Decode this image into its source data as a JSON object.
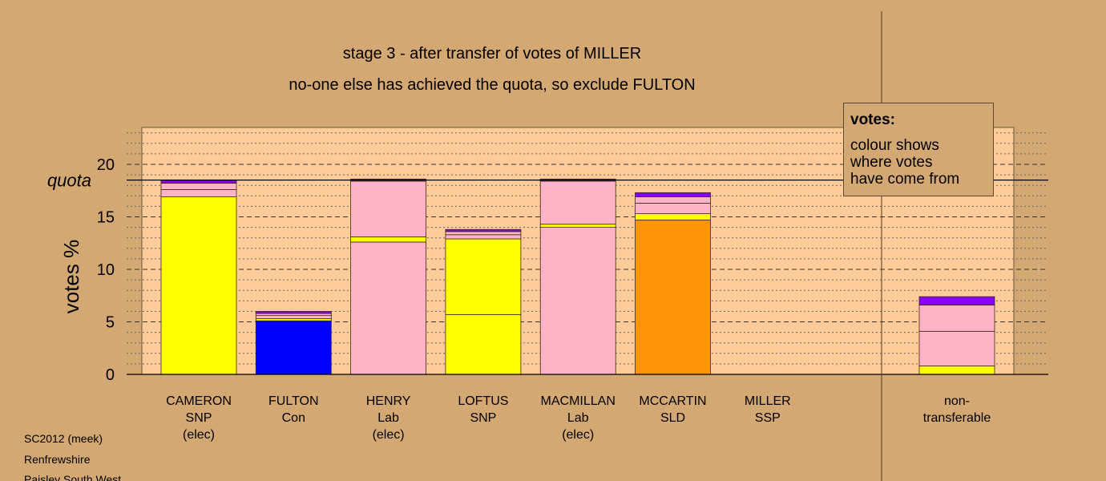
{
  "chart_data": {
    "type": "bar",
    "stacked": true,
    "title": "stage 3 - after transfer of votes of MILLER",
    "subtitle": "no-one else has achieved the quota, so exclude FULTON",
    "ylabel": "votes %",
    "xlabel": "",
    "ylim": [
      0,
      23.5
    ],
    "yticks": [
      0,
      5,
      10,
      15,
      20
    ],
    "quota": 18.5,
    "quota_label": "quota",
    "grid": "dashed at major ticks, dotted at minor",
    "categories": [
      {
        "name": "CAMERON",
        "party": "SNP",
        "status": "(elec)"
      },
      {
        "name": "FULTON",
        "party": "Con",
        "status": ""
      },
      {
        "name": "HENRY",
        "party": "Lab",
        "status": "(elec)"
      },
      {
        "name": "LOFTUS",
        "party": "SNP",
        "status": ""
      },
      {
        "name": "MACMILLAN",
        "party": "Lab",
        "status": "(elec)"
      },
      {
        "name": "MCCARTIN",
        "party": "SLD",
        "status": ""
      },
      {
        "name": "MILLER",
        "party": "SSP",
        "status": ""
      }
    ],
    "nontransferable_label_lines": [
      "non-",
      "transferable"
    ],
    "bars": [
      {
        "segments": [
          {
            "value": 16.9,
            "color": "#FFFF00"
          },
          {
            "value": 0.7,
            "color": "#FFB3C6"
          },
          {
            "value": 0.6,
            "color": "#FFB3C6"
          },
          {
            "value": 0.3,
            "color": "#8B00FF"
          }
        ]
      },
      {
        "segments": [
          {
            "value": 5.1,
            "color": "#0000FF"
          },
          {
            "value": 0.2,
            "color": "#FFFF00"
          },
          {
            "value": 0.3,
            "color": "#FFB3C6"
          },
          {
            "value": 0.2,
            "color": "#FFB3C6"
          },
          {
            "value": 0.2,
            "color": "#8B00FF"
          }
        ]
      },
      {
        "segments": [
          {
            "value": 12.6,
            "color": "#FFB3C6"
          },
          {
            "value": 0.5,
            "color": "#FFFF00"
          },
          {
            "value": 5.3,
            "color": "#FFB3C6"
          },
          {
            "value": 0.2,
            "color": "#8B00FF"
          }
        ]
      },
      {
        "segments": [
          {
            "value": 5.7,
            "color": "#FFFF00"
          },
          {
            "value": 7.2,
            "color": "#FFFF00"
          },
          {
            "value": 0.4,
            "color": "#FFB3C6"
          },
          {
            "value": 0.3,
            "color": "#FFB3C6"
          },
          {
            "value": 0.2,
            "color": "#8B00FF"
          }
        ]
      },
      {
        "segments": [
          {
            "value": 14.0,
            "color": "#FFB3C6"
          },
          {
            "value": 0.3,
            "color": "#FFFF00"
          },
          {
            "value": 4.1,
            "color": "#FFB3C6"
          },
          {
            "value": 0.2,
            "color": "#8B00FF"
          }
        ]
      },
      {
        "segments": [
          {
            "value": 14.7,
            "color": "#FF9408"
          },
          {
            "value": 0.6,
            "color": "#FFFF00"
          },
          {
            "value": 1.0,
            "color": "#FFB3C6"
          },
          {
            "value": 0.6,
            "color": "#FFB3C6"
          },
          {
            "value": 0.4,
            "color": "#8B00FF"
          }
        ]
      },
      {
        "segments": []
      }
    ],
    "nontransferable": {
      "segments": [
        {
          "value": 0.8,
          "color": "#FFFF00"
        },
        {
          "value": 3.3,
          "color": "#FFB3C6"
        },
        {
          "value": 2.5,
          "color": "#FFB3C6"
        },
        {
          "value": 0.8,
          "color": "#8B00FF"
        }
      ]
    },
    "legend": {
      "title": "votes:",
      "lines": [
        "colour shows",
        "where votes",
        "have come from"
      ],
      "placement": "top-right"
    }
  },
  "footer": {
    "lines": [
      "SC2012 (meek)",
      "Renfrewshire",
      "Paisley South West"
    ]
  },
  "colors": {
    "background": "#D4A873",
    "plot_background": "#FFCC99",
    "axis": "#000000"
  }
}
